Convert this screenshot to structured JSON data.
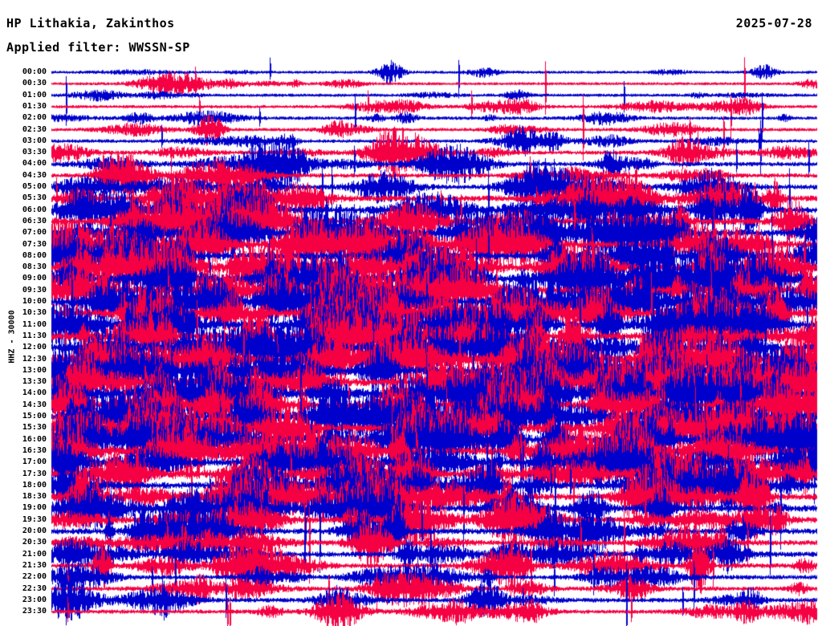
{
  "header": {
    "station": "HP Lithakia, Zakinthos",
    "date": "2025-07-28",
    "filter": "Applied filter: WWSSN-SP"
  },
  "y_axis": {
    "label": "HHZ - 30000"
  },
  "chart_data": {
    "type": "line",
    "variant": "helicorder-seismogram",
    "title": "HP Lithakia, Zakinthos",
    "subtitle": "Applied filter: WWSSN-SP",
    "date": "2025-07-28",
    "channel": "HHZ",
    "amplitude_scale": 30000,
    "row_duration_minutes": 30,
    "row_count": 48,
    "categories": [
      "00:00",
      "00:30",
      "01:00",
      "01:30",
      "02:00",
      "02:30",
      "03:00",
      "03:30",
      "04:00",
      "04:30",
      "05:00",
      "05:30",
      "06:00",
      "06:30",
      "07:00",
      "07:30",
      "08:00",
      "08:30",
      "09:00",
      "09:30",
      "10:00",
      "10:30",
      "11:00",
      "11:30",
      "12:00",
      "12:30",
      "13:00",
      "13:30",
      "14:00",
      "14:30",
      "15:00",
      "15:30",
      "16:00",
      "16:30",
      "17:00",
      "17:30",
      "18:00",
      "18:30",
      "19:00",
      "19:30",
      "20:00",
      "20:30",
      "21:00",
      "21:30",
      "22:00",
      "22:30",
      "23:00",
      "23:30"
    ],
    "row_activity": [
      0.12,
      0.12,
      0.15,
      0.15,
      0.18,
      0.18,
      0.2,
      0.25,
      0.3,
      0.28,
      0.35,
      0.45,
      0.55,
      0.55,
      0.6,
      0.6,
      0.6,
      0.6,
      0.7,
      0.7,
      0.72,
      0.7,
      0.72,
      0.7,
      0.7,
      0.72,
      0.75,
      0.72,
      0.75,
      0.72,
      0.75,
      0.75,
      0.7,
      0.65,
      0.65,
      0.6,
      0.6,
      0.55,
      0.55,
      0.5,
      0.45,
      0.4,
      0.4,
      0.35,
      0.3,
      0.28,
      0.3,
      0.25
    ],
    "trace_colors": [
      "#0000cc",
      "#f50043"
    ],
    "background": "#ffffff",
    "grid": false,
    "legend": "none",
    "xlabel": "",
    "ylabel": "HHZ - 30000"
  }
}
